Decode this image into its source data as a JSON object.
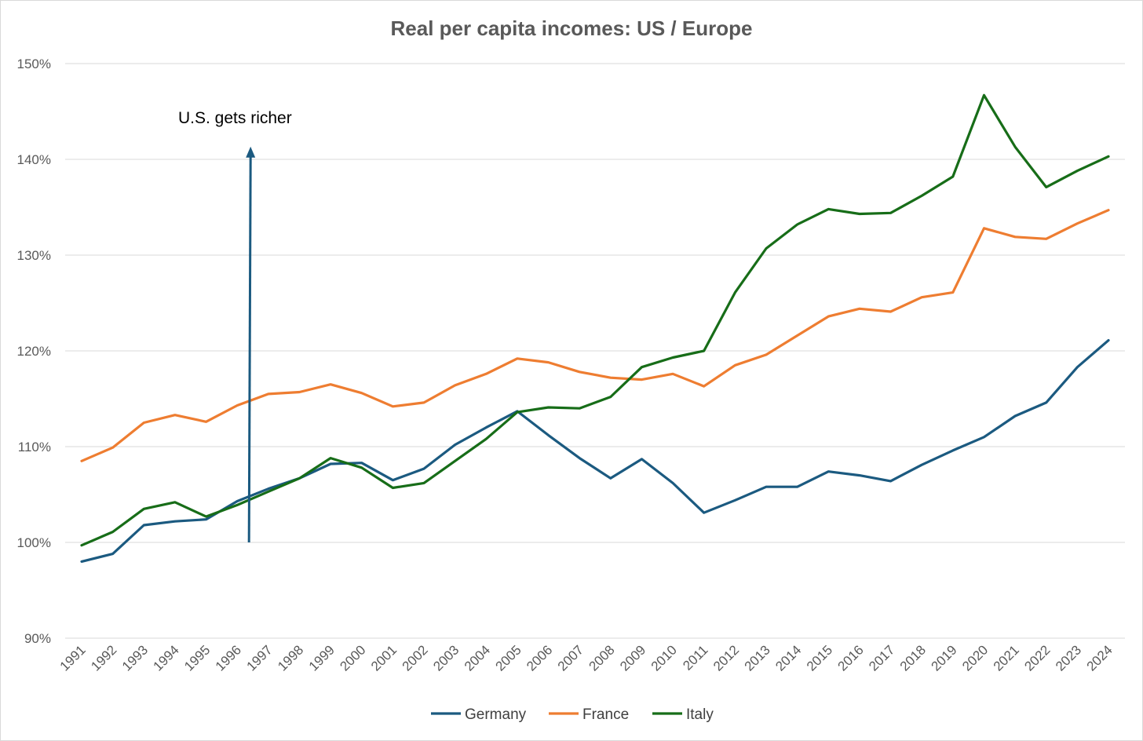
{
  "chart_data": {
    "type": "line",
    "title": "Real per capita incomes: US / Europe",
    "xlabel": "",
    "ylabel": "",
    "ylim": [
      90,
      150
    ],
    "yticks": [
      "90%",
      "100%",
      "110%",
      "120%",
      "130%",
      "140%",
      "150%"
    ],
    "grid": "horizontal",
    "legend_position": "bottom",
    "x": [
      "1991",
      "1992",
      "1993",
      "1994",
      "1995",
      "1996",
      "1997",
      "1998",
      "1999",
      "2000",
      "2001",
      "2002",
      "2003",
      "2004",
      "2005",
      "2006",
      "2007",
      "2008",
      "2009",
      "2010",
      "2011",
      "2012",
      "2013",
      "2014",
      "2015",
      "2016",
      "2017",
      "2018",
      "2019",
      "2020",
      "2021",
      "2022",
      "2023",
      "2024"
    ],
    "series": [
      {
        "name": "Germany",
        "color": "#1b5a80",
        "values": [
          98.0,
          98.8,
          101.8,
          102.2,
          102.4,
          104.3,
          105.6,
          106.7,
          108.2,
          108.3,
          106.5,
          107.7,
          110.2,
          112.0,
          113.7,
          111.2,
          108.8,
          106.7,
          108.7,
          106.2,
          103.1,
          104.4,
          105.8,
          105.8,
          107.4,
          107.0,
          106.4,
          108.1,
          109.6,
          111.0,
          113.2,
          114.6,
          118.3,
          121.1
        ]
      },
      {
        "name": "France",
        "color": "#ee7d31",
        "values": [
          108.5,
          109.9,
          112.5,
          113.3,
          112.6,
          114.3,
          115.5,
          115.7,
          116.5,
          115.6,
          114.2,
          114.6,
          116.4,
          117.6,
          119.2,
          118.8,
          117.8,
          117.2,
          117.0,
          117.6,
          116.3,
          118.5,
          119.6,
          121.6,
          123.6,
          124.4,
          124.1,
          125.6,
          126.1,
          132.8,
          131.9,
          131.7,
          133.3,
          134.7
        ]
      },
      {
        "name": "Italy",
        "color": "#176d18",
        "values": [
          99.7,
          101.1,
          103.5,
          104.2,
          102.7,
          103.9,
          105.3,
          106.7,
          108.8,
          107.8,
          105.7,
          106.2,
          108.5,
          110.8,
          113.6,
          114.1,
          114.0,
          115.2,
          118.3,
          119.3,
          120.0,
          126.1,
          130.7,
          133.2,
          134.8,
          134.3,
          134.4,
          136.2,
          138.2,
          146.7,
          141.3,
          137.1,
          138.8,
          140.3
        ]
      }
    ],
    "annotations": [
      {
        "text": "U.S. gets richer",
        "arrow": "up",
        "x": "1996",
        "y_from": 100,
        "y_to": 141
      }
    ]
  }
}
